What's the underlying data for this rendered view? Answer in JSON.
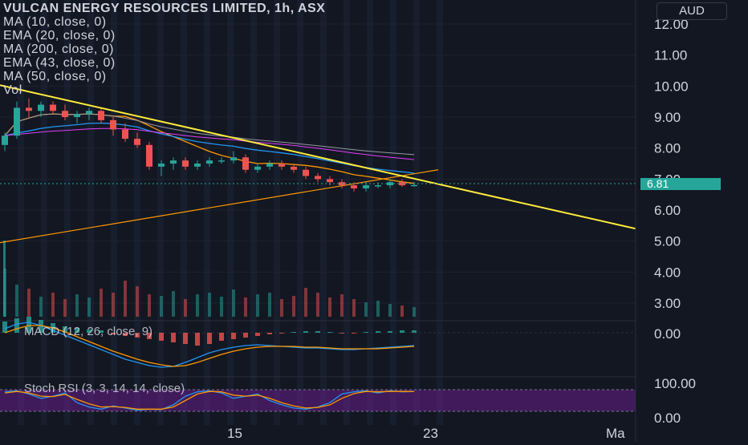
{
  "legend": {
    "title": "VULCAN ENERGY RESOURCES LIMITED, 1h, ASX",
    "indicators": [
      "MA (10, close, 0)",
      "EMA (20, close, 0)",
      "MA (200, close, 0)",
      "EMA (43, close, 0)",
      "MA (50, close, 0)",
      "Vol"
    ]
  },
  "currency_button": "AUD",
  "last_price_label": "6.81",
  "macd_label": "MACD (12, 26, close, 9)",
  "stoch_label": "Stoch RSI (3, 3, 14, 14, close)",
  "colors": {
    "background": "#131722",
    "up": "#26a69a",
    "down": "#ef5350",
    "trendline": "#ffeb3b",
    "ma_orange": "#ff9800",
    "ema_blue": "#2196f3",
    "stoch_band": "#7b1fa2"
  },
  "chart_data": {
    "type": "candlestick",
    "price_axis": {
      "ticks": [
        "12.00",
        "11.00",
        "10.00",
        "9.00",
        "8.00",
        "7.00",
        "6.00",
        "5.00",
        "4.00",
        "3.00"
      ],
      "ylim": [
        2.6,
        12.3
      ]
    },
    "macd_axis": {
      "ticks": [
        "0.00"
      ]
    },
    "stoch_axis": {
      "ticks": [
        "100.00",
        "0.00"
      ],
      "ylim": [
        0,
        100
      ]
    },
    "time_axis": {
      "ticks": [
        "15",
        "23",
        "Ma"
      ]
    },
    "last_price": 6.81,
    "candles": [
      [
        8.1,
        8.5,
        7.9,
        8.4
      ],
      [
        8.4,
        9.5,
        8.3,
        9.3
      ],
      [
        9.3,
        9.6,
        9.0,
        9.2
      ],
      [
        9.2,
        9.5,
        9.0,
        9.4
      ],
      [
        9.4,
        9.5,
        9.1,
        9.2
      ],
      [
        9.2,
        9.4,
        8.9,
        9.0
      ],
      [
        9.0,
        9.2,
        8.8,
        9.1
      ],
      [
        9.1,
        9.3,
        8.9,
        9.2
      ],
      [
        9.2,
        9.3,
        8.8,
        8.9
      ],
      [
        8.9,
        9.0,
        8.4,
        8.6
      ],
      [
        8.6,
        8.8,
        8.2,
        8.3
      ],
      [
        8.3,
        8.5,
        8.0,
        8.1
      ],
      [
        8.1,
        8.2,
        7.3,
        7.4
      ],
      [
        7.4,
        7.6,
        7.1,
        7.5
      ],
      [
        7.5,
        7.7,
        7.3,
        7.6
      ],
      [
        7.6,
        7.7,
        7.3,
        7.4
      ],
      [
        7.4,
        7.6,
        7.3,
        7.5
      ],
      [
        7.5,
        7.7,
        7.4,
        7.6
      ],
      [
        7.6,
        7.7,
        7.5,
        7.6
      ],
      [
        7.6,
        7.9,
        7.5,
        7.7
      ],
      [
        7.7,
        7.8,
        7.2,
        7.3
      ],
      [
        7.3,
        7.5,
        7.2,
        7.4
      ],
      [
        7.4,
        7.6,
        7.3,
        7.5
      ],
      [
        7.5,
        7.6,
        7.3,
        7.4
      ],
      [
        7.4,
        7.5,
        7.2,
        7.3
      ],
      [
        7.3,
        7.4,
        7.0,
        7.1
      ],
      [
        7.1,
        7.2,
        6.9,
        7.0
      ],
      [
        7.0,
        7.1,
        6.8,
        6.9
      ],
      [
        6.9,
        7.0,
        6.7,
        6.8
      ],
      [
        6.8,
        6.9,
        6.6,
        6.7
      ],
      [
        6.7,
        6.9,
        6.6,
        6.8
      ],
      [
        6.8,
        6.9,
        6.7,
        6.8
      ],
      [
        6.8,
        7.0,
        6.7,
        6.9
      ],
      [
        6.9,
        7.0,
        6.75,
        6.8
      ],
      [
        6.8,
        6.9,
        6.75,
        6.81
      ]
    ],
    "trendline": {
      "from": [
        0,
        9.9
      ],
      "to": [
        55,
        5.4
      ]
    },
    "support_line": {
      "from": [
        0,
        4.95
      ],
      "to": [
        36,
        7.3
      ]
    }
  }
}
